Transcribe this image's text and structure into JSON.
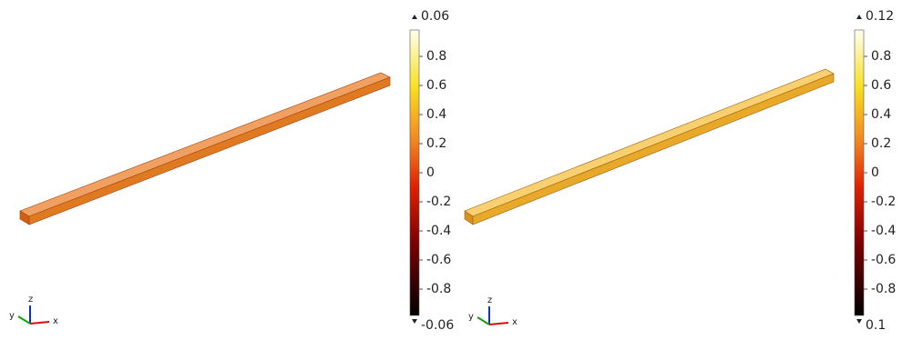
{
  "panels": [
    {
      "colorbar": {
        "max": 0.06,
        "min": -0.06,
        "range": [
          -1,
          1
        ],
        "ticks": [
          0.8,
          0.6,
          0.4,
          0.2,
          0,
          -0.2,
          -0.4,
          -0.6,
          -0.8
        ]
      },
      "triad": {
        "x": "x",
        "y": "y",
        "z": "z"
      }
    },
    {
      "colorbar": {
        "max": 0.12,
        "min": 0.1,
        "range": [
          -1,
          1
        ],
        "ticks": [
          0.8,
          0.6,
          0.4,
          0.2,
          0,
          -0.2,
          -0.4,
          -0.6,
          -0.8
        ]
      },
      "triad": {
        "x": "x",
        "y": "y",
        "z": "z"
      }
    }
  ]
}
